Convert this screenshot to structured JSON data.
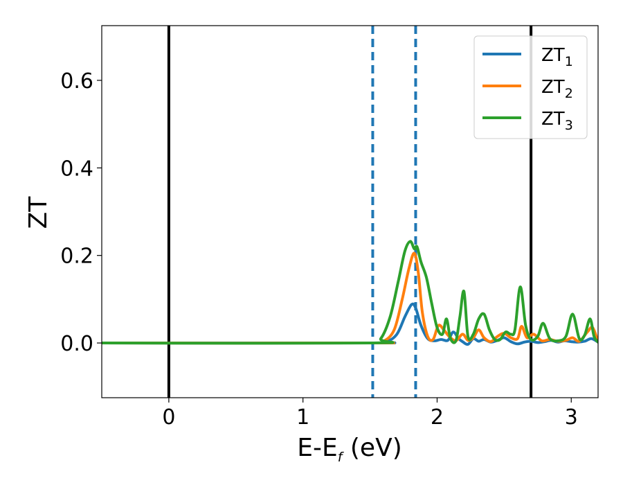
{
  "chart_data": {
    "type": "line",
    "title": "",
    "xlabel": {
      "main": "E-E",
      "sub": "f",
      "unit": " (eV)"
    },
    "ylabel": "ZT",
    "xlim": [
      -0.5,
      3.2
    ],
    "ylim": [
      -0.125,
      0.725
    ],
    "xticks": [
      0,
      1,
      2,
      3
    ],
    "xtick_labels": [
      "0",
      "1",
      "2",
      "3"
    ],
    "yticks": [
      0.0,
      0.2,
      0.4,
      0.6
    ],
    "ytick_labels": [
      "0.0",
      "0.2",
      "0.4",
      "0.6"
    ],
    "grid": false,
    "legend_position": "top-right",
    "vlines": [
      {
        "x": 0.0,
        "style": "solid",
        "color": "#000000"
      },
      {
        "x": 2.7,
        "style": "solid",
        "color": "#000000"
      },
      {
        "x": 1.52,
        "style": "dashed",
        "color": "#1f77b4"
      },
      {
        "x": 1.84,
        "style": "dashed",
        "color": "#1f77b4"
      }
    ],
    "series": [
      {
        "name": "ZT",
        "sub": "1",
        "color": "#1f77b4",
        "x": [
          -0.5,
          1.5,
          1.62,
          1.7,
          1.76,
          1.81,
          1.84,
          1.88,
          1.93,
          1.98,
          2.03,
          2.08,
          2.12,
          2.16,
          2.19,
          2.23,
          2.27,
          2.31,
          2.35,
          2.4,
          2.45,
          2.5,
          2.55,
          2.6,
          2.65,
          2.7,
          2.75,
          2.8,
          2.85,
          2.9,
          2.95,
          3.0,
          3.05,
          3.1,
          3.15,
          3.2
        ],
        "y": [
          0.0,
          0.0,
          0.003,
          0.02,
          0.06,
          0.088,
          0.08,
          0.04,
          0.01,
          0.005,
          0.008,
          0.006,
          0.025,
          0.01,
          0.003,
          -0.003,
          0.01,
          0.004,
          0.008,
          0.002,
          0.006,
          0.012,
          0.003,
          -0.002,
          0.002,
          0.004,
          0.001,
          0.003,
          0.006,
          0.002,
          0.005,
          0.003,
          0.002,
          0.004,
          0.01,
          0.002
        ]
      },
      {
        "name": "ZT",
        "sub": "2",
        "color": "#ff7f0e",
        "x": [
          -0.5,
          1.5,
          1.6,
          1.68,
          1.74,
          1.79,
          1.83,
          1.86,
          1.89,
          1.93,
          1.97,
          2.01,
          2.05,
          2.09,
          2.14,
          2.19,
          2.23,
          2.27,
          2.31,
          2.35,
          2.4,
          2.45,
          2.5,
          2.55,
          2.6,
          2.63,
          2.67,
          2.72,
          2.78,
          2.84,
          2.9,
          2.96,
          3.01,
          3.06,
          3.12,
          3.16,
          3.2
        ],
        "y": [
          0.0,
          0.0,
          0.004,
          0.03,
          0.1,
          0.17,
          0.205,
          0.16,
          0.07,
          0.015,
          0.008,
          0.04,
          0.03,
          0.015,
          0.005,
          0.02,
          0.006,
          0.012,
          0.03,
          0.012,
          0.003,
          0.015,
          0.022,
          0.012,
          0.01,
          0.038,
          0.012,
          0.02,
          0.005,
          0.008,
          0.004,
          0.006,
          0.012,
          0.004,
          0.025,
          0.035,
          0.002
        ]
      },
      {
        "name": "ZT",
        "sub": "3",
        "color": "#2ca02c",
        "x": [
          -0.5,
          1.5,
          1.58,
          1.65,
          1.71,
          1.76,
          1.8,
          1.83,
          1.85,
          1.88,
          1.92,
          1.96,
          2.0,
          2.04,
          2.07,
          2.1,
          2.14,
          2.17,
          2.2,
          2.23,
          2.27,
          2.31,
          2.35,
          2.39,
          2.43,
          2.47,
          2.51,
          2.55,
          2.58,
          2.62,
          2.66,
          2.7,
          2.75,
          2.79,
          2.84,
          2.9,
          2.96,
          3.01,
          3.06,
          3.1,
          3.14,
          3.17,
          3.2
        ],
        "y": [
          0.0,
          0.0,
          0.01,
          0.06,
          0.14,
          0.21,
          0.232,
          0.215,
          0.22,
          0.185,
          0.15,
          0.09,
          0.035,
          0.02,
          0.055,
          0.01,
          0.005,
          0.06,
          0.118,
          0.015,
          0.02,
          0.055,
          0.066,
          0.03,
          0.008,
          0.008,
          0.025,
          0.02,
          0.03,
          0.128,
          0.04,
          0.008,
          0.015,
          0.045,
          0.01,
          0.005,
          0.015,
          0.066,
          0.01,
          0.018,
          0.055,
          0.015,
          0.002
        ]
      }
    ]
  }
}
